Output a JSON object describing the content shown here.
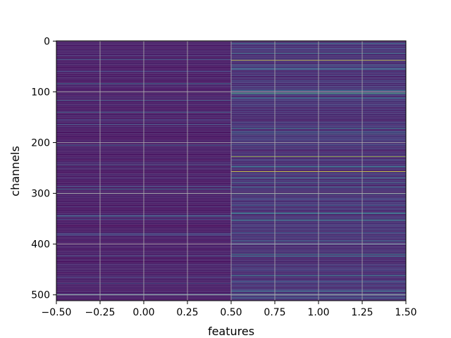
{
  "chart_data": {
    "type": "heatmap",
    "title": "",
    "xlabel": "features",
    "ylabel": "channels",
    "xlim": [
      -0.5,
      1.5
    ],
    "ylim": [
      511.5,
      -0.5
    ],
    "grid": true,
    "colormap": "viridis",
    "value_range": [
      0,
      1
    ],
    "x_ticks": [
      "−0.50",
      "−0.25",
      "0.00",
      "0.25",
      "0.50",
      "0.75",
      "1.00",
      "1.25",
      "1.50"
    ],
    "x_tick_values": [
      -0.5,
      -0.25,
      0.0,
      0.25,
      0.5,
      0.75,
      1.0,
      1.25,
      1.5
    ],
    "y_ticks": [
      "0",
      "100",
      "200",
      "300",
      "400",
      "500"
    ],
    "y_tick_values": [
      0,
      100,
      200,
      300,
      400,
      500
    ],
    "columns": [
      0,
      1
    ],
    "rows": 512,
    "column_baseline": [
      0.06,
      0.12
    ],
    "highlights": [
      {
        "column": 0,
        "channel": 84,
        "value": 0.42
      },
      {
        "column": 0,
        "channel": 140,
        "value": 0.35
      },
      {
        "column": 0,
        "channel": 300,
        "value": 0.3
      },
      {
        "column": 0,
        "channel": 345,
        "value": 0.4
      },
      {
        "column": 1,
        "channel": 4,
        "value": 0.45
      },
      {
        "column": 1,
        "channel": 38,
        "value": 0.92
      },
      {
        "column": 1,
        "channel": 103,
        "value": 0.6
      },
      {
        "column": 1,
        "channel": 172,
        "value": 0.45
      },
      {
        "column": 1,
        "channel": 183,
        "value": 0.42
      },
      {
        "column": 1,
        "channel": 228,
        "value": 0.85
      },
      {
        "column": 1,
        "channel": 257,
        "value": 0.95
      },
      {
        "column": 1,
        "channel": 270,
        "value": 0.45
      },
      {
        "column": 1,
        "channel": 300,
        "value": 0.5
      },
      {
        "column": 1,
        "channel": 352,
        "value": 0.48
      },
      {
        "column": 1,
        "channel": 420,
        "value": 0.5
      },
      {
        "column": 1,
        "channel": 462,
        "value": 0.5
      },
      {
        "column": 1,
        "channel": 493,
        "value": 0.45
      }
    ]
  }
}
